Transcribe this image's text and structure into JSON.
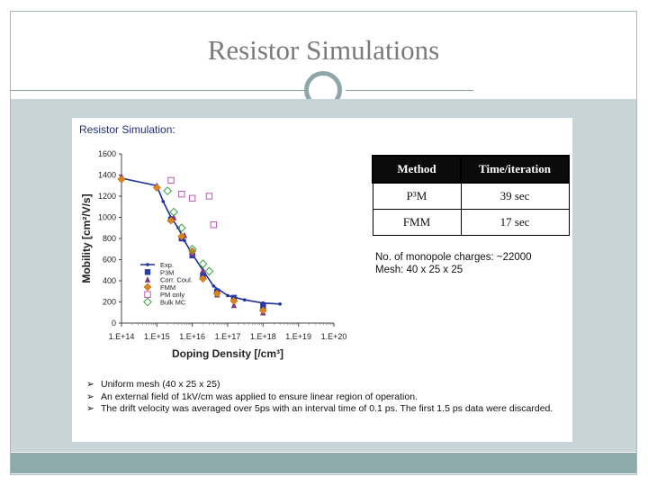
{
  "slide": {
    "title": "Resistor Simulations"
  },
  "panel": {
    "heading": "Resistor Simulation",
    "heading_colon": ":"
  },
  "table": {
    "headers": [
      "Method",
      "Time/iteration"
    ],
    "rows": [
      [
        "P³M",
        "39 sec"
      ],
      [
        "FMM",
        "17 sec"
      ]
    ]
  },
  "info": {
    "line1": "No. of monopole charges: ~22000",
    "line2": "Mesh: 40 x 25 x 25"
  },
  "notes": [
    "Uniform mesh (40 x 25 x 25)",
    "An external field of 1kV/cm was applied to ensure linear region of operation.",
    "The drift velocity was averaged over 5ps with an interval time of 0.1 ps. The first 1.5 ps data were discarded."
  ],
  "notes_bullet": "➢",
  "chart_data": {
    "type": "scatter",
    "xscale": "log",
    "xlim": [
      100000000000000.0,
      1e+20
    ],
    "ylim": [
      0,
      1600
    ],
    "xticks": [
      "1.E+14",
      "1.E+15",
      "1.E+16",
      "1.E+17",
      "1.E+18",
      "1.E+19",
      "1.E+20"
    ],
    "yticks": [
      "0",
      "200",
      "400",
      "600",
      "800",
      "1000",
      "1200",
      "1400",
      "1600"
    ],
    "xlabel": "Doping Density [/cm³]",
    "ylabel": "Mobility [cm²/V/s]",
    "legend_position": "bottom-left",
    "series": [
      {
        "name": "Exp.",
        "marker": "line-dot",
        "color": "#1f2f9a",
        "points": [
          [
            100000000000000.0,
            1370
          ],
          [
            1000000000000000.0,
            1300
          ],
          [
            1500000000000000.0,
            1150
          ],
          [
            2500000000000000.0,
            1000
          ],
          [
            4000000000000000.0,
            900
          ],
          [
            6000000000000000.0,
            780
          ],
          [
            1e+16,
            650
          ],
          [
            2e+16,
            500
          ],
          [
            4e+16,
            350
          ],
          [
            1e+17,
            260
          ],
          [
            3e+17,
            220
          ],
          [
            1e+18,
            190
          ],
          [
            3e+18,
            180
          ]
        ]
      },
      {
        "name": "P3M",
        "marker": "square",
        "color": "#2a3aa8",
        "points": [
          [
            2500000000000000.0,
            980
          ],
          [
            5000000000000000.0,
            800
          ],
          [
            1e+16,
            640
          ],
          [
            2e+16,
            450
          ],
          [
            5e+16,
            300
          ],
          [
            1.5e+17,
            240
          ],
          [
            1e+18,
            160
          ]
        ]
      },
      {
        "name": "Corr. Coul.",
        "marker": "triangle",
        "color": "#7a3a8a",
        "points": [
          [
            100000000000000.0,
            1390
          ],
          [
            1000000000000000.0,
            1300
          ],
          [
            3000000000000000.0,
            1000
          ],
          [
            6000000000000000.0,
            830
          ],
          [
            1e+16,
            660
          ],
          [
            2e+16,
            500
          ],
          [
            5e+16,
            270
          ],
          [
            1.5e+17,
            170
          ],
          [
            1e+18,
            100
          ]
        ]
      },
      {
        "name": "FMM",
        "marker": "diamond",
        "color": "#e0831a",
        "points": [
          [
            100000000000000.0,
            1360
          ],
          [
            1000000000000000.0,
            1280
          ],
          [
            2500000000000000.0,
            970
          ],
          [
            5000000000000000.0,
            820
          ],
          [
            1e+16,
            680
          ],
          [
            2e+16,
            420
          ],
          [
            5e+16,
            280
          ],
          [
            1.5e+17,
            210
          ],
          [
            1e+18,
            120
          ]
        ]
      },
      {
        "name": "PM only",
        "marker": "square-open",
        "color": "#b85ab0",
        "points": [
          [
            2500000000000000.0,
            1350
          ],
          [
            5000000000000000.0,
            1220
          ],
          [
            1e+16,
            1180
          ],
          [
            3e+16,
            1200
          ],
          [
            4e+16,
            930
          ]
        ]
      },
      {
        "name": "Bulk MC",
        "marker": "diamond-open",
        "color": "#35a03a",
        "points": [
          [
            2000000000000000.0,
            1250
          ],
          [
            3000000000000000.0,
            1050
          ],
          [
            5000000000000000.0,
            900
          ],
          [
            1e+16,
            700
          ],
          [
            2e+16,
            560
          ],
          [
            3e+16,
            490
          ]
        ]
      }
    ]
  }
}
